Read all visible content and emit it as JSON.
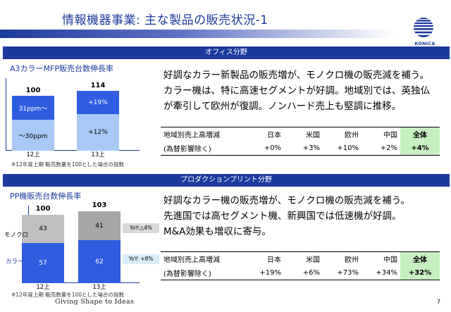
{
  "header": {
    "title": "情報機器事業:  主な製品の販売状況-1",
    "logo_text": "KONICA MINOLTA"
  },
  "office": {
    "section_label": "オフィス分野",
    "chart_title": "A3カラーMFP販売台数伸長率",
    "body_lines": [
      "好調なカラー新製品の販売増が、モノクロ機の販売減を補う。",
      "カラー機は、特に高速セグメントが好調。地域別では、英独仏",
      "が牽引して欧州が復調。ノンハード売上も堅調に推移。"
    ],
    "note": "※12年度上期 販売数量を100とした場合の指数",
    "table": {
      "header": [
        "地域別売上高増減",
        "日本",
        "米国",
        "欧州",
        "中国",
        "全体"
      ],
      "row": [
        "(為替影響除く)",
        "+0%",
        "+3%",
        "+10%",
        "+2%",
        "+4%"
      ]
    }
  },
  "production": {
    "section_label": "プロダクションプリント分野",
    "chart_title": "PP機販売台数伸長率",
    "body_lines": [
      "好調なカラー機の販売増が、モノクロ機の販売減を補う。",
      "先進国では高セグメント機、新興国では低速機が好調。",
      "M&A効果も増収に寄与。"
    ],
    "note": "※12年度上期 販売数量を100とした場合の指数",
    "side_labels": {
      "mono": "モノクロ",
      "color": "カラー"
    },
    "yoy": {
      "mono": "YoY:△4%",
      "color": "YoY: +8%"
    },
    "table": {
      "header": [
        "地域別売上高増減",
        "日本",
        "米国",
        "欧州",
        "中国",
        "全体"
      ],
      "row": [
        "(為替影響除く)",
        "+19%",
        "+6%",
        "+73%",
        "+34%",
        "+32%"
      ]
    }
  },
  "footer": {
    "tagline": "Giving Shape to Ideas",
    "page": "7"
  },
  "colors": {
    "brand": "#1c3a9e",
    "bar_dark": "#2f5de0",
    "bar_light": "#a9c8f5",
    "mono_a": "#bfbfbf",
    "mono_b": "#a6a6a6",
    "highlight": "#c7efc1"
  },
  "chart_data": [
    {
      "type": "bar",
      "title": "A3カラーMFP販売台数伸長率",
      "categories": [
        "12上",
        "13上"
      ],
      "totals": [
        "100",
        "114"
      ],
      "series": [
        {
          "name": "〜30ppm",
          "values": [
            60,
            67
          ]
        },
        {
          "name": "31ppm〜",
          "values": [
            40,
            47
          ]
        }
      ],
      "labels": [
        [
          "〜30ppm",
          "31ppm〜"
        ],
        [
          "+12%",
          "+19%"
        ]
      ],
      "ylim": [
        0,
        120
      ]
    },
    {
      "type": "bar",
      "title": "PP機販売台数伸長率",
      "categories": [
        "12上",
        "13上"
      ],
      "totals": [
        "100",
        "103"
      ],
      "series": [
        {
          "name": "カラー",
          "values": [
            57,
            62
          ]
        },
        {
          "name": "モノクロ",
          "values": [
            43,
            41
          ]
        }
      ],
      "ylim": [
        0,
        108
      ]
    }
  ]
}
